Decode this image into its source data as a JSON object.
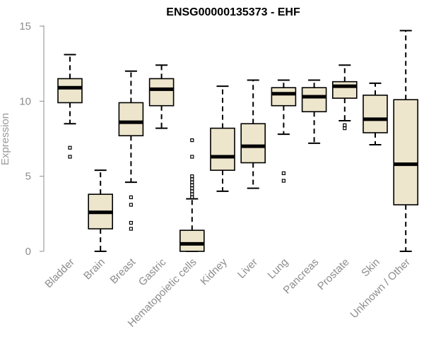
{
  "chart_data": {
    "type": "boxplot",
    "title": "ENSG00000135373 - EHF",
    "xlabel": "",
    "ylabel": "Expression",
    "ylim": [
      0,
      15
    ],
    "yticks": [
      0,
      5,
      10,
      15
    ],
    "box_fill": "#ede6cc",
    "box_stroke": "#000000",
    "axis_color": "#8c8c8c",
    "categories": [
      "Bladder",
      "Brain",
      "Breast",
      "Gastric",
      "Hematopoietic cells",
      "Kidney",
      "Liver",
      "Lung",
      "Pancreas",
      "Prostate",
      "Skin",
      "Unknown / Other"
    ],
    "boxes": [
      {
        "name": "Bladder",
        "whisker_low": 8.5,
        "q1": 9.9,
        "median": 10.9,
        "q3": 11.5,
        "whisker_high": 13.1,
        "outliers": [
          6.9,
          6.3
        ]
      },
      {
        "name": "Brain",
        "whisker_low": 0.0,
        "q1": 1.5,
        "median": 2.6,
        "q3": 3.8,
        "whisker_high": 5.4,
        "outliers": []
      },
      {
        "name": "Breast",
        "whisker_low": 4.6,
        "q1": 7.7,
        "median": 8.6,
        "q3": 9.9,
        "whisker_high": 12.0,
        "outliers": [
          3.6,
          3.1,
          1.9,
          1.5
        ]
      },
      {
        "name": "Gastric",
        "whisker_low": 8.2,
        "q1": 9.7,
        "median": 10.8,
        "q3": 11.5,
        "whisker_high": 12.4,
        "outliers": []
      },
      {
        "name": "Hematopoietic cells",
        "whisker_low": 0.0,
        "q1": 0.0,
        "median": 0.5,
        "q3": 1.4,
        "whisker_high": 3.5,
        "outliers": [
          7.4,
          6.3,
          5.0,
          4.8,
          4.6,
          4.4,
          4.2,
          4.0,
          3.8,
          3.6
        ]
      },
      {
        "name": "Kidney",
        "whisker_low": 4.0,
        "q1": 5.4,
        "median": 6.3,
        "q3": 8.2,
        "whisker_high": 11.0,
        "outliers": []
      },
      {
        "name": "Liver",
        "whisker_low": 4.2,
        "q1": 5.9,
        "median": 7.0,
        "q3": 8.5,
        "whisker_high": 11.4,
        "outliers": []
      },
      {
        "name": "Lung",
        "whisker_low": 7.8,
        "q1": 9.7,
        "median": 10.5,
        "q3": 10.9,
        "whisker_high": 11.4,
        "outliers": [
          5.2,
          4.7
        ]
      },
      {
        "name": "Pancreas",
        "whisker_low": 7.2,
        "q1": 9.3,
        "median": 10.3,
        "q3": 10.9,
        "whisker_high": 11.4,
        "outliers": []
      },
      {
        "name": "Prostate",
        "whisker_low": 8.7,
        "q1": 10.2,
        "median": 11.0,
        "q3": 11.3,
        "whisker_high": 12.4,
        "outliers": [
          8.4,
          8.2
        ]
      },
      {
        "name": "Skin",
        "whisker_low": 7.1,
        "q1": 7.9,
        "median": 8.8,
        "q3": 10.4,
        "whisker_high": 11.2,
        "outliers": []
      },
      {
        "name": "Unknown / Other",
        "whisker_low": 0.0,
        "q1": 3.1,
        "median": 5.8,
        "q3": 10.1,
        "whisker_high": 14.7,
        "outliers": []
      }
    ]
  }
}
